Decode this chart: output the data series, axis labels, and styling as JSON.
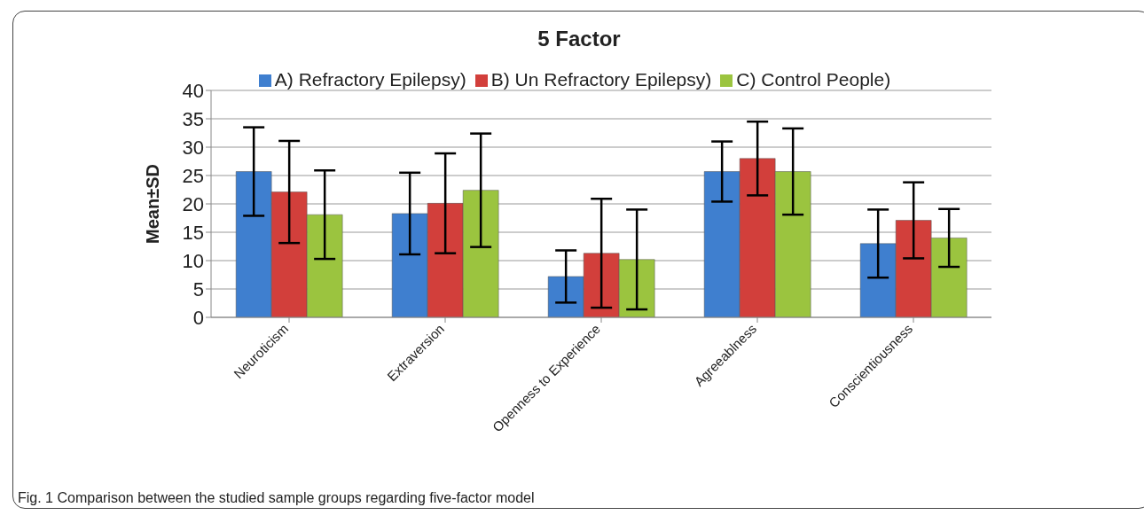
{
  "chart_data": {
    "type": "bar",
    "title": "5 Factor",
    "ylabel": "Mean±SD",
    "categories": [
      "Neuroticism",
      "Extraversion",
      "Openness to Experience",
      "Agreeablness",
      "Conscientiousness"
    ],
    "series": [
      {
        "name": "A) Refractory Epilepsy)",
        "color": "#3f7fcf",
        "values": [
          25.7,
          18.3,
          7.2,
          25.7,
          13.0
        ],
        "errors": [
          7.8,
          7.2,
          4.6,
          5.3,
          6.0
        ]
      },
      {
        "name": "B) Un Refractory Epilepsy)",
        "color": "#d23f3b",
        "values": [
          22.1,
          20.1,
          11.3,
          28.0,
          17.1
        ],
        "errors": [
          9.0,
          8.8,
          9.6,
          6.5,
          6.7
        ]
      },
      {
        "name": "C) Control People)",
        "color": "#9bc43f",
        "values": [
          18.1,
          22.4,
          10.2,
          25.7,
          14.0
        ],
        "errors": [
          7.8,
          10.0,
          8.8,
          7.6,
          5.1
        ]
      }
    ],
    "ylim": [
      0,
      40
    ],
    "yticks": [
      0,
      5,
      10,
      15,
      20,
      25,
      30,
      35,
      40
    ],
    "grid": "y",
    "legend": "top",
    "annotations": [
      "Fig. 1 Comparison between the studied sample groups regarding five-factor model"
    ]
  }
}
